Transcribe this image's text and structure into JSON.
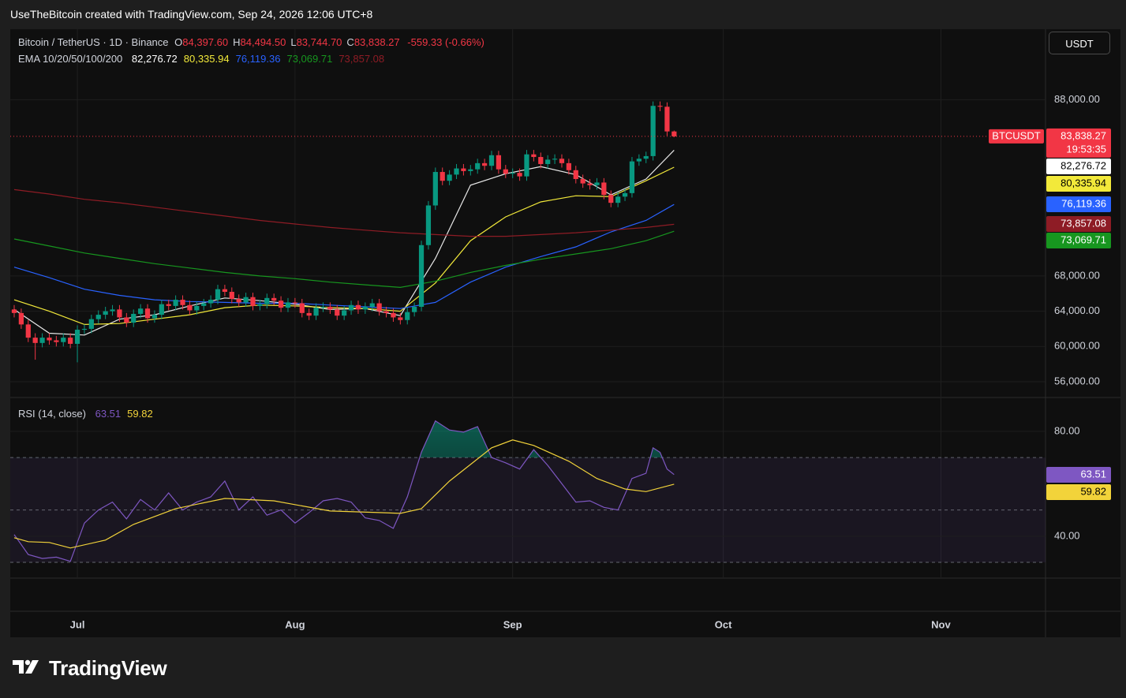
{
  "header": {
    "attribution": "UseTheBitcoin created with TradingView.com, Sep 24, 2026 12:06 UTC+8"
  },
  "currency_button": "USDT",
  "footer": {
    "logo": "TradingView"
  },
  "chart_data": [
    {
      "type": "candlestick",
      "symbol": "Bitcoin / TetherUS · 1D · Binance",
      "ohlc_legend": [
        {
          "key": "O",
          "value": "84,397.60"
        },
        {
          "key": "H",
          "value": "84,494.50"
        },
        {
          "key": "L",
          "value": "83,744.70"
        },
        {
          "key": "C",
          "value": "83,838.27"
        }
      ],
      "change": "-559.33 (-0.66%)",
      "last_price_tag": {
        "symbol": "BTCUSDT",
        "countdown": "19:53:35"
      },
      "xlim": [
        -0.56,
        146.9
      ],
      "xticks": [
        {
          "value": 9,
          "label": "Jul"
        },
        {
          "value": 40,
          "label": "Aug"
        },
        {
          "value": 71,
          "label": "Sep"
        },
        {
          "value": 101,
          "label": "Oct"
        },
        {
          "value": 132,
          "label": "Nov"
        }
      ],
      "ylim": [
        54300,
        96000
      ],
      "yticks": [
        {
          "value": 88000,
          "label": "88,000.00"
        },
        {
          "value": 68000,
          "label": "68,000.00"
        },
        {
          "value": 64000,
          "label": "64,000.00"
        },
        {
          "value": 60000,
          "label": "60,000.00"
        },
        {
          "value": 56000,
          "label": "56,000.00"
        }
      ],
      "grid": true,
      "up_color": "#089981",
      "down_color": "#f23645",
      "open": [
        64200,
        63800,
        62500,
        61000,
        60400,
        61000,
        60700,
        60500,
        61000,
        60300,
        61900,
        62000,
        63100,
        63600,
        64000,
        64200,
        63300,
        62700,
        63700,
        64300,
        63200,
        63600,
        64800,
        64600,
        65300,
        64700,
        64100,
        64600,
        64900,
        65300,
        66500,
        66200,
        65400,
        65000,
        65600,
        64600,
        64800,
        65500,
        65200,
        64400,
        65000,
        64900,
        63800,
        63500,
        64400,
        64500,
        64200,
        63500,
        64100,
        64700,
        64200,
        64500,
        64900,
        64000,
        63800,
        63300,
        63000,
        63900,
        64500,
        71500,
        76000,
        79800,
        78800,
        79500,
        80200,
        79900,
        80100,
        80800,
        80500,
        81700,
        80100,
        79600,
        79700,
        79300,
        81800,
        81500,
        80700,
        81200,
        81300,
        80800,
        80000,
        79000,
        78500,
        78300,
        78600,
        77200,
        76300,
        77000,
        77400,
        81000,
        81300,
        81600,
        87300,
        87200,
        84397.6
      ],
      "high": [
        64700,
        64300,
        63000,
        61500,
        61500,
        61500,
        61200,
        61500,
        61500,
        62400,
        62500,
        63600,
        64100,
        64500,
        64700,
        64700,
        63800,
        64200,
        64800,
        64800,
        64100,
        65300,
        65300,
        65800,
        65800,
        65200,
        65100,
        65400,
        65800,
        67000,
        67000,
        66700,
        65900,
        66100,
        66100,
        65300,
        66000,
        66000,
        65700,
        65500,
        65500,
        65400,
        64300,
        64900,
        65000,
        65000,
        64700,
        64600,
        65200,
        65200,
        65000,
        65400,
        65400,
        64500,
        64300,
        63800,
        64400,
        65000,
        72000,
        76500,
        80300,
        80300,
        80000,
        80700,
        80700,
        80600,
        81300,
        81300,
        82200,
        82200,
        80600,
        80200,
        80200,
        82300,
        82300,
        82000,
        81700,
        81800,
        81800,
        81300,
        80500,
        79500,
        79000,
        79100,
        79100,
        77700,
        77500,
        77900,
        81500,
        81800,
        82100,
        87800,
        87800,
        87700,
        84494.5
      ],
      "low": [
        63300,
        62000,
        60500,
        58500,
        59900,
        60200,
        60000,
        60000,
        59800,
        58200,
        61400,
        61500,
        62600,
        63100,
        63500,
        62800,
        62200,
        62200,
        63200,
        62700,
        62700,
        63100,
        64100,
        64100,
        64200,
        63600,
        63600,
        64100,
        64400,
        64800,
        65700,
        64900,
        64500,
        64500,
        64100,
        64100,
        64300,
        64700,
        63900,
        63900,
        64400,
        63300,
        63000,
        63000,
        63900,
        63700,
        63000,
        63000,
        63600,
        63700,
        63700,
        64000,
        63500,
        63300,
        62800,
        62500,
        62500,
        63400,
        64000,
        71000,
        75500,
        78300,
        78300,
        79000,
        79400,
        79400,
        79600,
        80000,
        80000,
        79600,
        79100,
        79100,
        78800,
        78800,
        81000,
        80200,
        80200,
        80700,
        80300,
        79500,
        78500,
        78000,
        77800,
        77800,
        76700,
        75800,
        75800,
        76500,
        76900,
        80500,
        80800,
        81100,
        86700,
        83900,
        83744.7
      ],
      "close": [
        63800,
        62500,
        61000,
        60400,
        61000,
        60700,
        60500,
        61000,
        60300,
        61900,
        62000,
        63100,
        63600,
        64000,
        64200,
        63300,
        62700,
        63700,
        64300,
        63200,
        63600,
        64800,
        64600,
        65300,
        64700,
        64100,
        64600,
        64900,
        65300,
        66500,
        66200,
        65400,
        65000,
        65600,
        64600,
        64800,
        65500,
        65200,
        64400,
        65000,
        64900,
        63800,
        63500,
        64400,
        64500,
        64200,
        63500,
        64100,
        64700,
        64200,
        64500,
        64900,
        64000,
        63800,
        63300,
        63000,
        63900,
        64500,
        71500,
        76000,
        79800,
        78800,
        79500,
        80200,
        79900,
        80100,
        80800,
        80500,
        81700,
        80100,
        79600,
        79700,
        79300,
        81800,
        81500,
        80700,
        81200,
        81300,
        80800,
        80000,
        79000,
        78500,
        78300,
        78600,
        77200,
        76300,
        77000,
        77400,
        81000,
        81300,
        81600,
        87300,
        87200,
        84397.6,
        83838.27
      ],
      "ema": {
        "title": "EMA 10/20/50/100/200",
        "lines": [
          {
            "color": "#e8e8e8",
            "text_color": "#000000",
            "label": "82,276.72",
            "x": [
              0,
              5,
              10,
              15,
              20,
              25,
              30,
              35,
              40,
              45,
              50,
              55,
              60,
              65,
              70,
              75,
              80,
              85,
              90,
              94
            ],
            "values": [
              64200,
              61500,
              61300,
              63100,
              63600,
              64600,
              65500,
              65200,
              64800,
              64200,
              64300,
              63500,
              70000,
              78300,
              79600,
              80400,
              79500,
              77200,
              79000,
              82276.72
            ]
          },
          {
            "color": "#f2e93a",
            "text_color": "#000000",
            "label": "80,335.94",
            "x": [
              0,
              5,
              10,
              15,
              20,
              25,
              30,
              35,
              40,
              45,
              50,
              55,
              60,
              65,
              70,
              75,
              80,
              85,
              90,
              94
            ],
            "values": [
              65300,
              64000,
              62500,
              62600,
              63100,
              63600,
              64400,
              64700,
              64600,
              64400,
              64300,
              64000,
              67200,
              72000,
              74700,
              76400,
              77100,
              77000,
              78800,
              80335.94
            ]
          },
          {
            "color": "#2962ff",
            "text_color": "#ffffff",
            "label": "76,119.36",
            "x": [
              0,
              5,
              10,
              15,
              20,
              25,
              30,
              35,
              40,
              45,
              50,
              55,
              60,
              65,
              70,
              75,
              80,
              85,
              90,
              94
            ],
            "values": [
              69000,
              67800,
              66500,
              65800,
              65300,
              65100,
              65000,
              64900,
              64900,
              64700,
              64500,
              64300,
              65000,
              67300,
              69000,
              70200,
              71300,
              73000,
              74300,
              76119.36
            ]
          },
          {
            "color": "#17961f",
            "text_color": "#ffffff",
            "label": "73,069.71",
            "x": [
              0,
              5,
              10,
              15,
              20,
              25,
              30,
              35,
              40,
              45,
              50,
              55,
              60,
              65,
              70,
              75,
              80,
              85,
              90,
              94
            ],
            "values": [
              72200,
              71400,
              70600,
              70000,
              69400,
              68900,
              68400,
              68000,
              67700,
              67300,
              67000,
              66700,
              67400,
              68400,
              69200,
              69900,
              70500,
              71100,
              72000,
              73069.71
            ]
          },
          {
            "color": "#8e1c25",
            "text_color": "#ffffff",
            "label": "73,857.08",
            "x": [
              0,
              5,
              10,
              15,
              20,
              25,
              30,
              35,
              40,
              45,
              50,
              55,
              60,
              65,
              70,
              75,
              80,
              85,
              90,
              94
            ],
            "values": [
              77800,
              77300,
              76700,
              76300,
              75800,
              75300,
              74800,
              74300,
              73900,
              73500,
              73200,
              72900,
              72700,
              72500,
              72500,
              72700,
              72900,
              73200,
              73500,
              73857.08
            ]
          }
        ]
      }
    },
    {
      "type": "line",
      "title": "RSI (14, close)",
      "xlim": [
        -0.56,
        146.9
      ],
      "ylim": [
        24,
        92.6
      ],
      "yticks": [
        {
          "value": 80,
          "label": "80.00"
        },
        {
          "value": 40,
          "label": "40.00"
        }
      ],
      "levels": [
        70,
        50,
        30
      ],
      "band_color": "#7e57c2",
      "overbought_color": "#089981",
      "series": [
        {
          "color": "#7e57c2",
          "text_color": "#ffffff",
          "label": "63.51",
          "x": [
            0,
            2,
            4,
            6,
            8,
            10,
            12,
            14,
            16,
            18,
            20,
            22,
            24,
            26,
            28,
            30,
            32,
            34,
            36,
            38,
            40,
            42,
            44,
            46,
            48,
            50,
            52,
            54,
            56,
            58,
            60,
            62,
            64,
            66,
            68,
            70,
            72,
            74,
            76,
            78,
            80,
            82,
            84,
            86,
            88,
            90,
            91,
            92,
            93,
            94
          ],
          "values": [
            40.6,
            33,
            31.5,
            32,
            30.4,
            45,
            50,
            53,
            46.6,
            54,
            50,
            56.5,
            50,
            53,
            55,
            61,
            50,
            55,
            48,
            50,
            45,
            49,
            53.5,
            54.4,
            53,
            47,
            46,
            43,
            55,
            72,
            84,
            80.5,
            79.7,
            81.8,
            70,
            68,
            65.6,
            73,
            67,
            60,
            53,
            53.5,
            51,
            50,
            62,
            64,
            73.7,
            72,
            65.6,
            63.51
          ]
        },
        {
          "color": "#f2d33a",
          "text_color": "#000000",
          "label": "59.82",
          "x": [
            0,
            2,
            5,
            8,
            13,
            17,
            23,
            30,
            37,
            45,
            52,
            55,
            58,
            62,
            68,
            71,
            74,
            79,
            83,
            87,
            90,
            94
          ],
          "values": [
            39.4,
            37.9,
            37.6,
            35.5,
            38.5,
            44.5,
            50.5,
            54.4,
            53.5,
            49.6,
            49,
            48.7,
            50.5,
            61,
            73.7,
            76.7,
            74.6,
            68.6,
            62,
            58,
            57,
            59.82
          ]
        }
      ]
    }
  ]
}
